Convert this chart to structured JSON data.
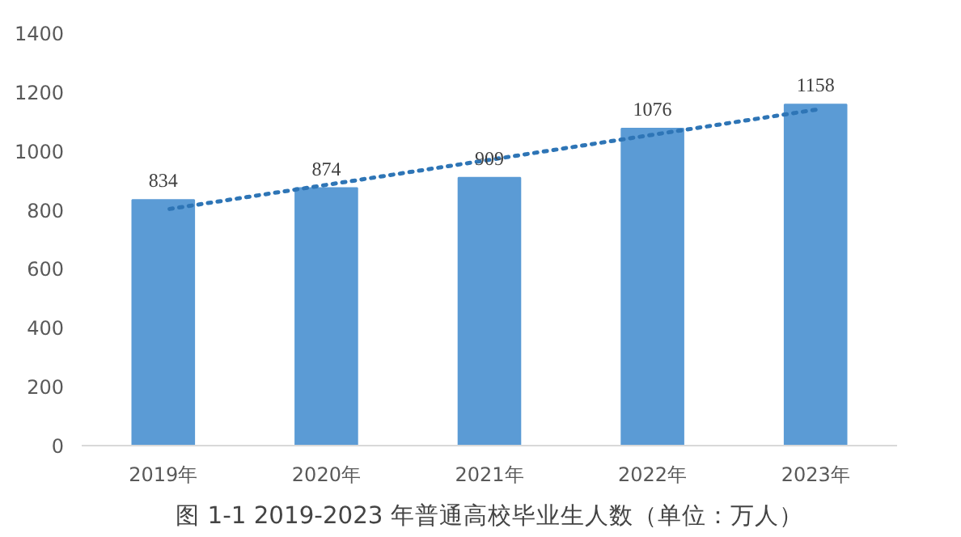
{
  "chart_data": {
    "type": "bar",
    "title": "图 1-1 2019-2023 年普通高校毕业生人数（单位：万人）",
    "categories": [
      "2019年",
      "2020年",
      "2021年",
      "2022年",
      "2023年"
    ],
    "series": [
      {
        "color": "#5b9bd5",
        "values": [
          834,
          874,
          909,
          1076,
          1158
        ],
        "value_labels": [
          "834",
          "874",
          "909",
          "1076",
          "1158"
        ]
      },
      {
        "type": "line",
        "color": "#2e75b6",
        "line_style": "dotted",
        "x": [
          "2019年",
          "2023年"
        ],
        "values": [
          800,
          1140
        ]
      }
    ],
    "ylim": [
      0,
      1400
    ],
    "yticks": [
      0,
      200,
      400,
      600,
      800,
      1000,
      1200,
      1400
    ],
    "grid": false
  }
}
